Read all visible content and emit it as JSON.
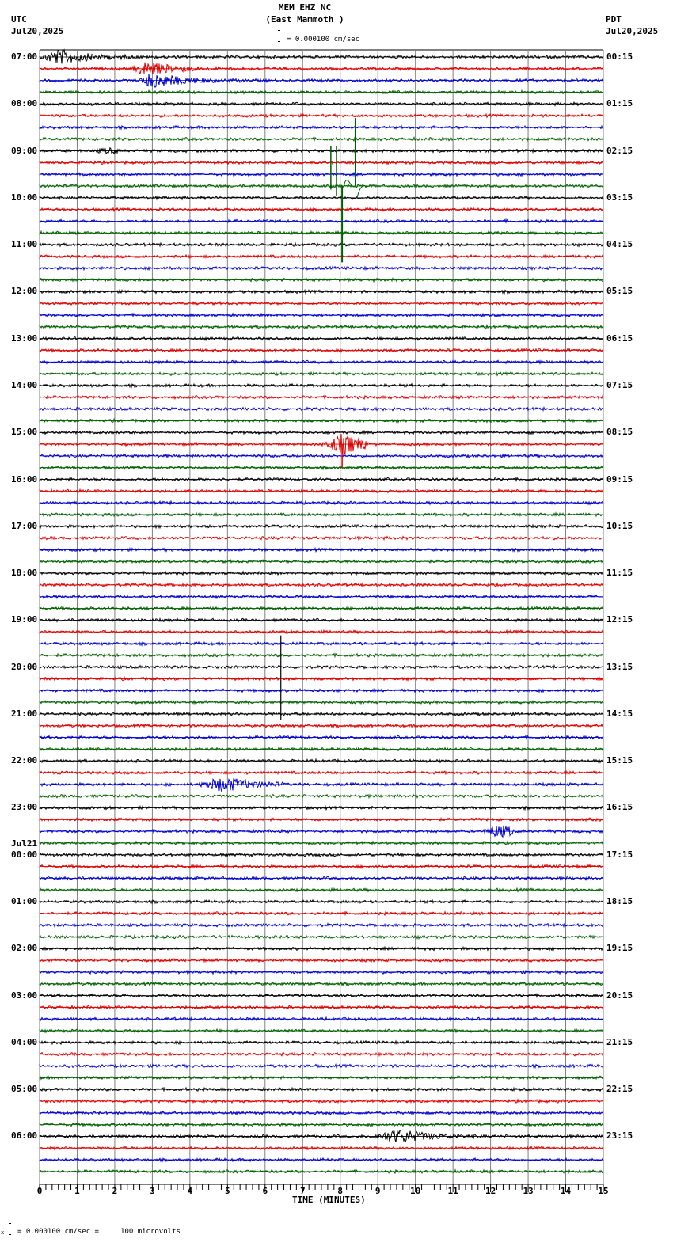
{
  "header": {
    "station": "MEM EHZ NC",
    "location": "(East Mammoth )",
    "scale_text": "= 0.000100 cm/sec",
    "left_tz": "UTC",
    "left_date": "Jul20,2025",
    "right_tz": "PDT",
    "right_date": "Jul20,2025"
  },
  "footer": {
    "scale_text": "= 0.000100 cm/sec =     100 microvolts",
    "scale_prefix": "x"
  },
  "colors": {
    "trace_cycle": [
      "#000000",
      "#e00000",
      "#0000d0",
      "#006000"
    ],
    "grid": "#808080",
    "background": "#ffffff"
  },
  "chart_data": {
    "type": "line",
    "title": "MEM EHZ NC (East Mammoth )",
    "subtitle": "= 0.000100 cm/sec",
    "xlabel": "TIME (MINUTES)",
    "ylabel": "",
    "xlim": [
      0,
      15
    ],
    "x_ticks": [
      "0",
      "1",
      "2",
      "3",
      "4",
      "5",
      "6",
      "7",
      "8",
      "9",
      "10",
      "11",
      "12",
      "13",
      "14",
      "15"
    ],
    "trace_minutes": 15,
    "traces_per_hour": 4,
    "trace_count": 96,
    "grid": true,
    "left_hour_labels": [
      "07:00",
      "08:00",
      "09:00",
      "10:00",
      "11:00",
      "12:00",
      "13:00",
      "14:00",
      "15:00",
      "16:00",
      "17:00",
      "18:00",
      "19:00",
      "20:00",
      "21:00",
      "22:00",
      "23:00",
      "00:00",
      "01:00",
      "02:00",
      "03:00",
      "04:00",
      "05:00",
      "06:00"
    ],
    "right_hour_labels": [
      "00:15",
      "01:15",
      "02:15",
      "03:15",
      "04:15",
      "05:15",
      "06:15",
      "07:15",
      "08:15",
      "09:15",
      "10:15",
      "11:15",
      "12:15",
      "13:15",
      "14:15",
      "15:15",
      "16:15",
      "17:15",
      "18:15",
      "19:15",
      "20:15",
      "21:15",
      "22:15",
      "23:15"
    ],
    "date_change_label": {
      "hour_index": 17,
      "text": "Jul21"
    },
    "events": [
      {
        "trace": 0,
        "start_min": 0.0,
        "end_min": 5.0,
        "amp": 9,
        "peak_min": 0.5,
        "desc": "large local event, black"
      },
      {
        "trace": 1,
        "start_min": 2.4,
        "end_min": 15.0,
        "amp": 8,
        "peak_min": 2.8,
        "desc": "red coda"
      },
      {
        "trace": 2,
        "start_min": 2.6,
        "end_min": 9.0,
        "amp": 9,
        "peak_min": 3.0,
        "desc": "blue coda"
      },
      {
        "trace": 8,
        "start_min": 1.4,
        "end_min": 2.1,
        "amp": 2.5,
        "peak_min": 1.8,
        "desc": "small black"
      },
      {
        "trace": 11,
        "start_min": 7.7,
        "end_min": 8.5,
        "amp": 0,
        "peak_min": 8.0,
        "desc": "green spikes (calibration/glitch)"
      },
      {
        "trace": 33,
        "start_min": 7.5,
        "end_min": 8.7,
        "amp": 12,
        "peak_min": 8.05,
        "desc": "red local event"
      },
      {
        "trace": 53,
        "start_min": 6.4,
        "end_min": 6.5,
        "amp": 0,
        "peak_min": 6.45,
        "desc": "black spike"
      },
      {
        "trace": 62,
        "start_min": 4.2,
        "end_min": 6.5,
        "amp": 9,
        "peak_min": 4.9,
        "desc": "blue event"
      },
      {
        "trace": 66,
        "start_min": 11.8,
        "end_min": 12.6,
        "amp": 7,
        "peak_min": 12.2,
        "desc": "blue event"
      },
      {
        "trace": 92,
        "start_min": 8.8,
        "end_min": 11.8,
        "amp": 8,
        "peak_min": 9.6,
        "desc": "blue event"
      }
    ]
  }
}
